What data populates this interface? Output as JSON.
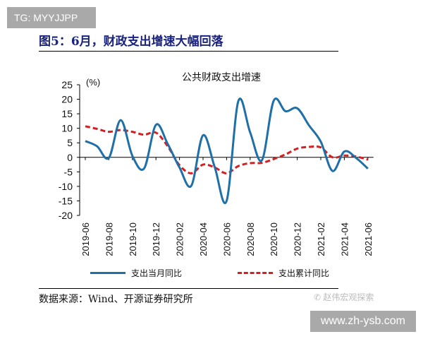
{
  "watermark_top": "TG: MYYJJPP",
  "figure_title": "图5：6月，财政支出增速大幅回落",
  "source": "数据来源：Wind、开源证券研究所",
  "wechat_tag": "赵伟宏观探索",
  "watermark_bottom": "www.zh-ysb.com",
  "chart_data": {
    "type": "line",
    "title": "公共财政支出增速",
    "ylabel": "(%)",
    "ylim": [
      -20,
      25
    ],
    "yticks": [
      25,
      20,
      15,
      10,
      5,
      0,
      -5,
      -10,
      -15,
      -20
    ],
    "grid": false,
    "legend_position": "bottom",
    "x": [
      "2019-06",
      "2019-07",
      "2019-08",
      "2019-09",
      "2019-10",
      "2019-11",
      "2019-12",
      "2020-01",
      "2020-02",
      "2020-03",
      "2020-04",
      "2020-05",
      "2020-06",
      "2020-07",
      "2020-08",
      "2020-09",
      "2020-10",
      "2020-11",
      "2020-12",
      "2021-01",
      "2021-02",
      "2021-03",
      "2021-04",
      "2021-05",
      "2021-06"
    ],
    "xtick_labels": [
      "2019-06",
      "2019-08",
      "2019-10",
      "2019-12",
      "2020-02",
      "2020-04",
      "2020-06",
      "2020-08",
      "2020-10",
      "2020-12",
      "2021-02",
      "2021-04",
      "2021-06"
    ],
    "series": [
      {
        "name": "支出当月同比",
        "color": "#1f6fa8",
        "style": "solid",
        "values": [
          5.6,
          3.8,
          -0.2,
          12.8,
          0.5,
          -3.8,
          11.2,
          4.6,
          -3.5,
          -9.8,
          7.6,
          -3.5,
          -15.0,
          19.4,
          8.6,
          -1.0,
          19.5,
          15.9,
          16.9,
          11.0,
          5.4,
          -4.7,
          2.0,
          -0.2,
          -3.9
        ]
      },
      {
        "name": "支出累计同比",
        "color": "#d42020",
        "style": "dashed",
        "values": [
          10.7,
          9.8,
          8.8,
          9.4,
          8.8,
          7.8,
          8.5,
          3.8,
          -2.7,
          -5.5,
          -2.5,
          -3.5,
          -5.5,
          -3.0,
          -2.0,
          -1.9,
          -0.6,
          1.0,
          3.0,
          3.6,
          3.4,
          0.0,
          0.6,
          0.3,
          -0.8
        ]
      }
    ]
  }
}
